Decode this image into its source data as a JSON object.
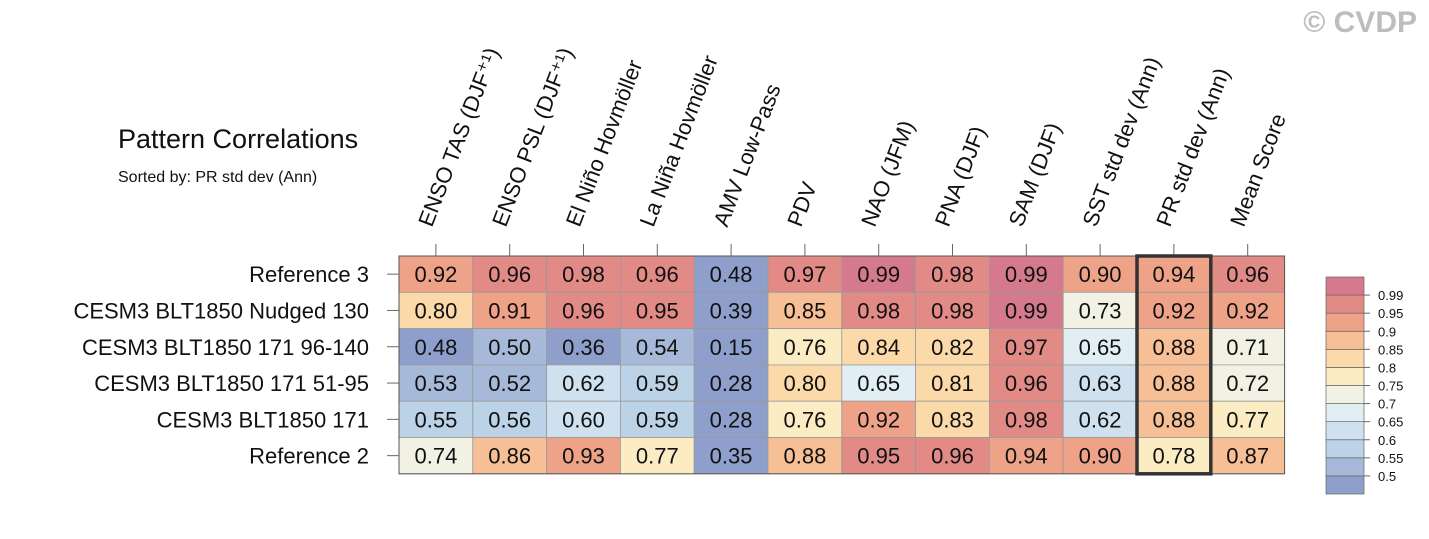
{
  "watermark": "© CVDP",
  "chart_data": {
    "type": "heatmap",
    "title": "Pattern Correlations",
    "subtitle": "Sorted by: PR std dev (Ann)",
    "columns": [
      "ENSO TAS (DJF⁺¹)",
      "ENSO PSL (DJF⁺¹)",
      "El Niño Hovmöller",
      "La Niña Hovmöller",
      "AMV Low-Pass",
      "PDV",
      "NAO (JFM)",
      "PNA (DJF)",
      "SAM (DJF)",
      "SST std dev (Ann)",
      "PR std dev (Ann)",
      "Mean Score"
    ],
    "rows": [
      "Reference 3",
      "CESM3 BLT1850 Nudged 130",
      "CESM3 BLT1850 171 96-140",
      "CESM3 BLT1850 171 51-95",
      "CESM3 BLT1850 171",
      "Reference 2"
    ],
    "values": [
      [
        0.92,
        0.96,
        0.98,
        0.96,
        0.48,
        0.97,
        0.99,
        0.98,
        0.99,
        0.9,
        0.94,
        0.96
      ],
      [
        0.8,
        0.91,
        0.96,
        0.95,
        0.39,
        0.85,
        0.98,
        0.98,
        0.99,
        0.73,
        0.92,
        0.92
      ],
      [
        0.48,
        0.5,
        0.36,
        0.54,
        0.15,
        0.76,
        0.84,
        0.82,
        0.97,
        0.65,
        0.88,
        0.71
      ],
      [
        0.53,
        0.52,
        0.62,
        0.59,
        0.28,
        0.8,
        0.65,
        0.81,
        0.96,
        0.63,
        0.88,
        0.72
      ],
      [
        0.55,
        0.56,
        0.6,
        0.59,
        0.28,
        0.76,
        0.92,
        0.83,
        0.98,
        0.62,
        0.88,
        0.77
      ],
      [
        0.74,
        0.86,
        0.93,
        0.77,
        0.35,
        0.88,
        0.95,
        0.96,
        0.94,
        0.9,
        0.78,
        0.87
      ]
    ],
    "value_labels": [
      [
        "0.92",
        "0.96",
        "0.98",
        "0.96",
        "0.48",
        "0.97",
        "0.99",
        "0.98",
        "0.99",
        "0.90",
        "0.94",
        "0.96"
      ],
      [
        "0.80",
        "0.91",
        "0.96",
        "0.95",
        "0.39",
        "0.85",
        "0.98",
        "0.98",
        "0.99",
        "0.73",
        "0.92",
        "0.92"
      ],
      [
        "0.48",
        "0.50",
        "0.36",
        "0.54",
        "0.15",
        "0.76",
        "0.84",
        "0.82",
        "0.97",
        "0.65",
        "0.88",
        "0.71"
      ],
      [
        "0.53",
        "0.52",
        "0.62",
        "0.59",
        "0.28",
        "0.80",
        "0.65",
        "0.81",
        "0.96",
        "0.63",
        "0.88",
        "0.72"
      ],
      [
        "0.55",
        "0.56",
        "0.60",
        "0.59",
        "0.28",
        "0.76",
        "0.92",
        "0.83",
        "0.98",
        "0.62",
        "0.88",
        "0.77"
      ],
      [
        "0.74",
        "0.86",
        "0.93",
        "0.77",
        "0.35",
        "0.88",
        "0.95",
        "0.96",
        "0.94",
        "0.90",
        "0.78",
        "0.87"
      ]
    ],
    "highlighted_column": "PR std dev (Ann)",
    "colorbar": {
      "levels": [
        "0.5",
        "0.55",
        "0.6",
        "0.65",
        "0.7",
        "0.75",
        "0.8",
        "0.85",
        "0.9",
        "0.95",
        "0.99"
      ],
      "thresholds": [
        0.5,
        0.55,
        0.6,
        0.65,
        0.7,
        0.75,
        0.8,
        0.85,
        0.9,
        0.95,
        0.99
      ],
      "colors": [
        "#8f9fcc",
        "#a6b9d9",
        "#bcd2e7",
        "#cfe1ef",
        "#e1eef3",
        "#f2f2e4",
        "#fbecc3",
        "#fbd9a9",
        "#f6bf95",
        "#eea388",
        "#e18a86",
        "#d47a8c"
      ],
      "placement": "right"
    }
  }
}
